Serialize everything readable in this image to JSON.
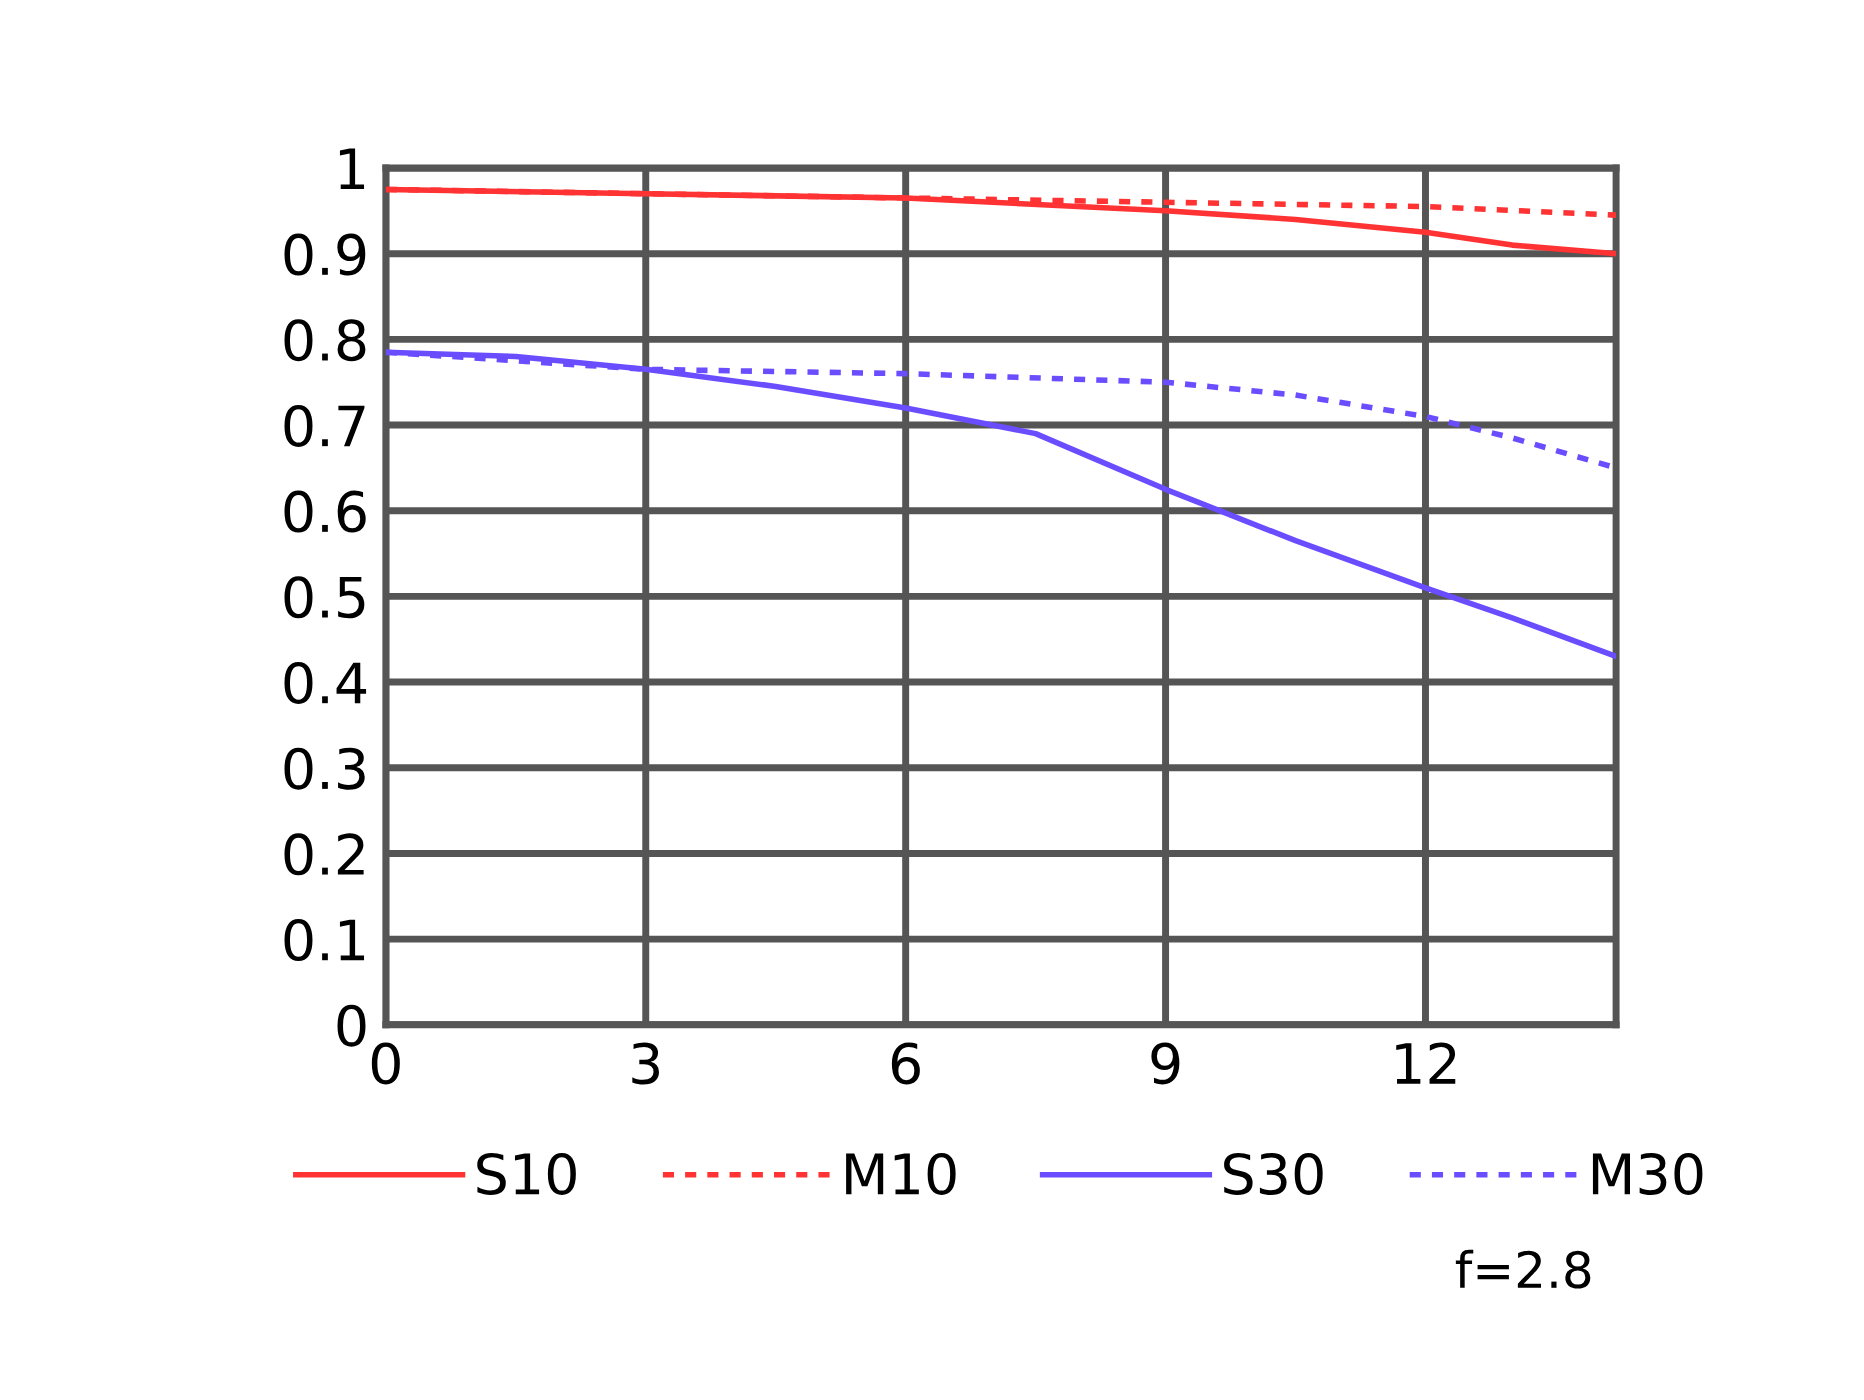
{
  "chart_data": {
    "type": "line",
    "xlim": [
      0,
      14.2
    ],
    "xticks": [
      0,
      3,
      6,
      9,
      12
    ],
    "ylim": [
      0,
      1
    ],
    "yticks": [
      0,
      0.1,
      0.2,
      0.3,
      0.4,
      0.5,
      0.6,
      0.7,
      0.8,
      0.9,
      1
    ],
    "grid": true,
    "legend": "bottom",
    "marker": "none",
    "series": [
      {
        "name": "S10",
        "color": "#ff3333",
        "line_style": "solid",
        "x": [
          0,
          3,
          6,
          9,
          10.5,
          12,
          13,
          14.2
        ],
        "values": [
          0.975,
          0.97,
          0.965,
          0.95,
          0.94,
          0.925,
          0.91,
          0.9
        ]
      },
      {
        "name": "M10",
        "color": "#ff3333",
        "line_style": "dotted",
        "x": [
          0,
          3,
          6,
          9,
          12,
          14.2
        ],
        "values": [
          0.975,
          0.97,
          0.965,
          0.96,
          0.955,
          0.945
        ]
      },
      {
        "name": "S30",
        "color": "#6a4dff",
        "line_style": "solid",
        "x": [
          0,
          1.5,
          3,
          4.5,
          6,
          7.5,
          9,
          10.5,
          12,
          13,
          14.2
        ],
        "values": [
          0.785,
          0.78,
          0.765,
          0.745,
          0.72,
          0.69,
          0.625,
          0.565,
          0.51,
          0.475,
          0.43
        ]
      },
      {
        "name": "M30",
        "color": "#6a4dff",
        "line_style": "dotted",
        "x": [
          0,
          3,
          6,
          9,
          10.5,
          12,
          13,
          14.2
        ],
        "values": [
          0.785,
          0.765,
          0.76,
          0.75,
          0.735,
          0.71,
          0.685,
          0.65
        ]
      }
    ],
    "annotations": [
      "f=2.8"
    ]
  }
}
